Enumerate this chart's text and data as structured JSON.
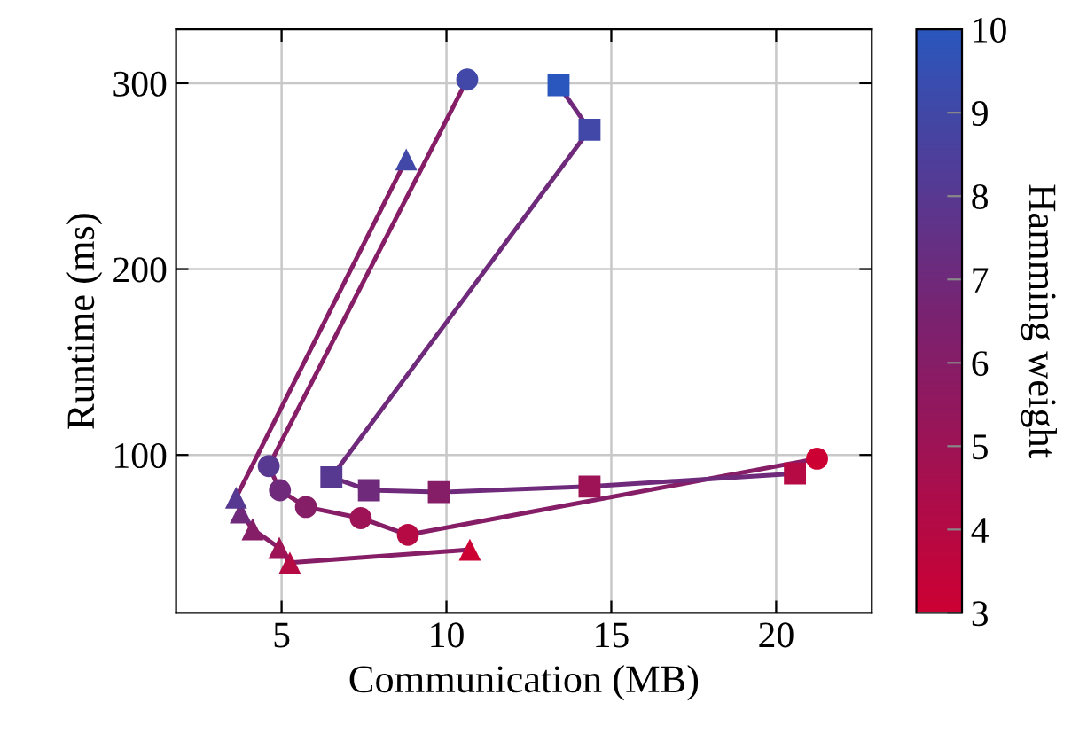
{
  "chart_data": {
    "type": "line",
    "xlabel": "Communication (MB)",
    "ylabel": "Runtime (ms)",
    "clabel": "Hamming weight",
    "xlim": [
      1.8,
      22.9
    ],
    "ylim": [
      15,
      329
    ],
    "xticks": [
      5,
      10,
      15,
      20
    ],
    "yticks": [
      100,
      200,
      300
    ],
    "clim": [
      3,
      10
    ],
    "cticks": [
      3,
      4,
      5,
      6,
      7,
      8,
      9,
      10
    ],
    "grid": true,
    "line_style": "solid",
    "series": [
      {
        "marker": "triangle",
        "color": "#861d67",
        "x": [
          10.71,
          5.25,
          4.93,
          4.12,
          3.76,
          3.62,
          8.78
        ],
        "values": [
          49,
          42,
          50,
          60,
          69,
          77,
          259
        ],
        "colors": [
          "#cc0033",
          "#b50a44",
          "#9d1356",
          "#861d67",
          "#6f2a7b",
          "#583991",
          "#4148a7"
        ]
      },
      {
        "marker": "circle",
        "color": "#861d67",
        "x": [
          21.24,
          8.83,
          7.4,
          5.74,
          4.95,
          4.61,
          10.63
        ],
        "values": [
          98,
          57,
          66,
          72,
          81,
          94,
          302
        ],
        "colors": [
          "#cc0033",
          "#b50a44",
          "#9d1356",
          "#861d67",
          "#6f2a7b",
          "#583991",
          "#4148a7"
        ]
      },
      {
        "marker": "square",
        "color": "#6f2a7b",
        "x": [
          20.57,
          14.34,
          9.77,
          7.65,
          6.51,
          14.34,
          13.4
        ],
        "values": [
          90,
          83,
          80,
          81,
          88,
          275,
          299
        ],
        "colors": [
          "#b50a44",
          "#9d1356",
          "#861d67",
          "#6f2a7b",
          "#583991",
          "#4148a7",
          "#2a57bd"
        ]
      }
    ]
  }
}
